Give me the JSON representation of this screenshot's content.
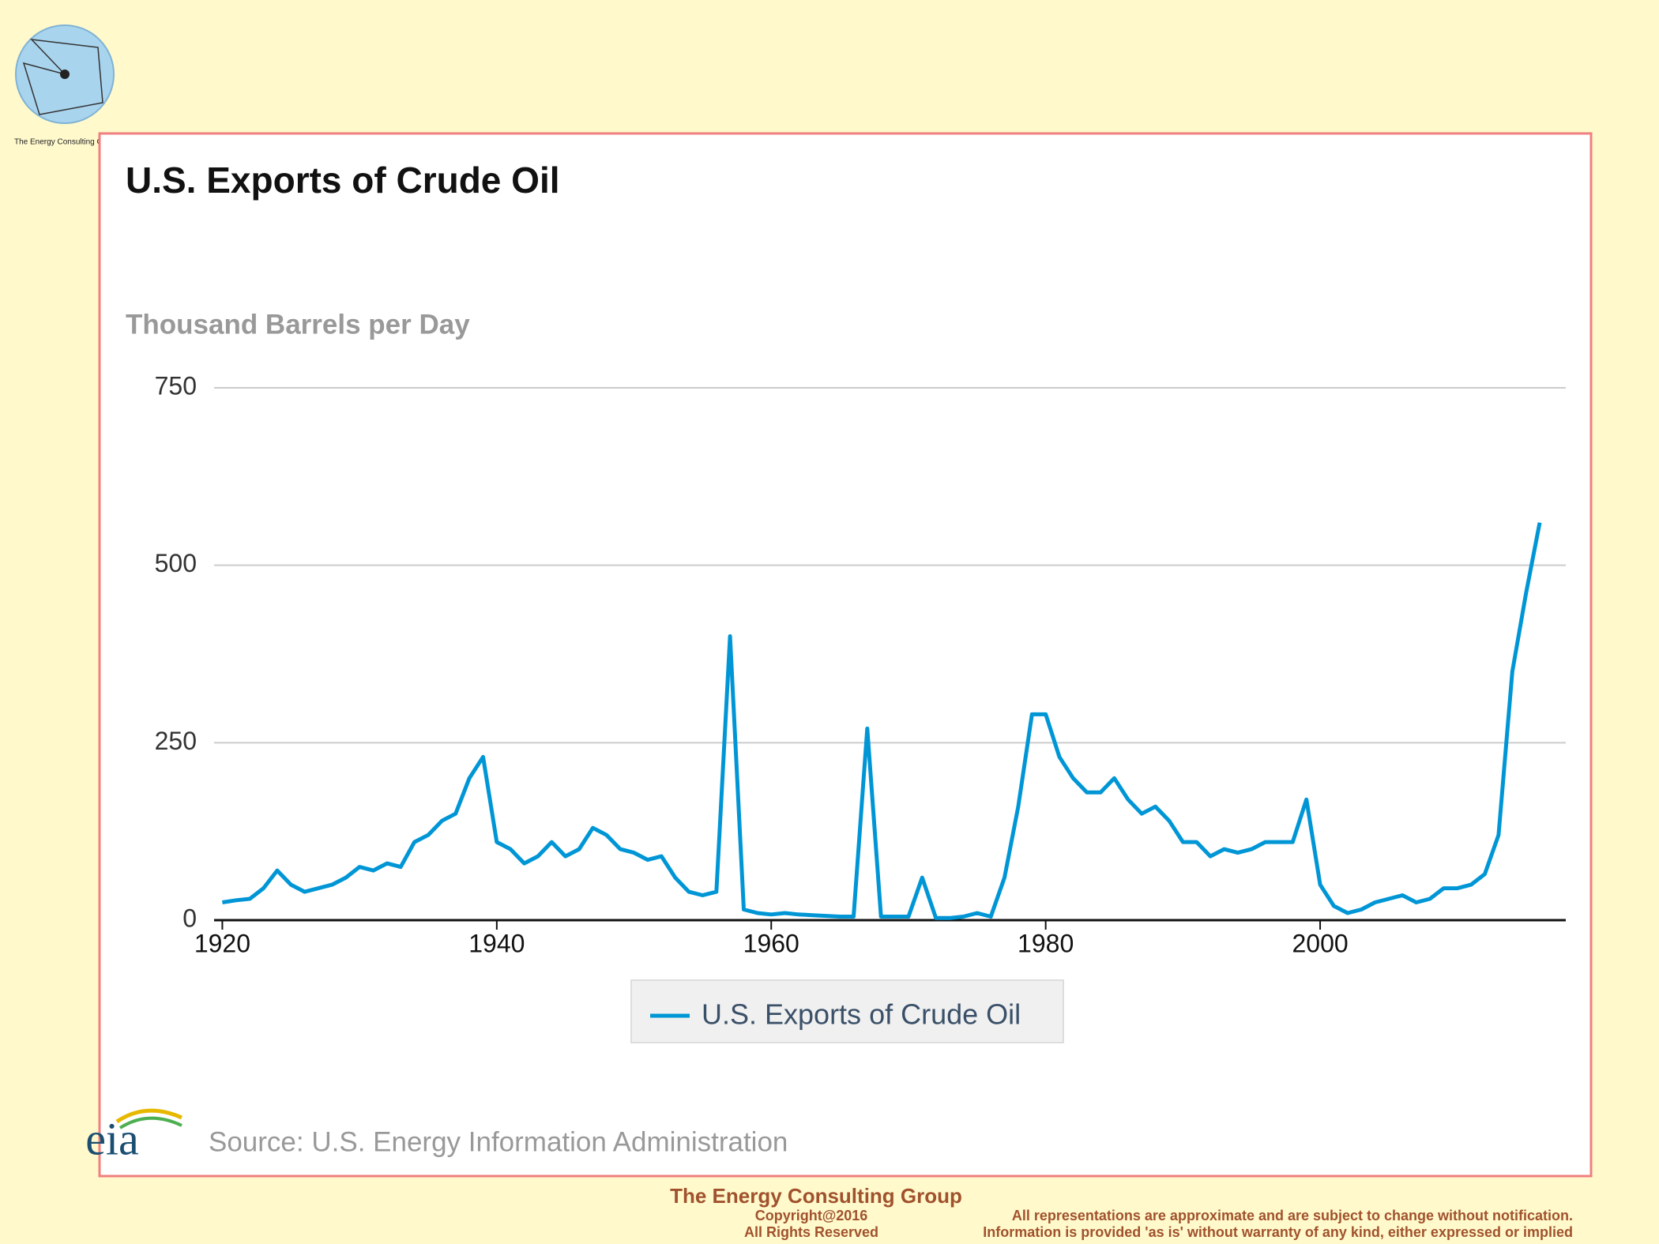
{
  "header": {
    "logo_caption": "The Energy Consulting Group"
  },
  "chart_data": {
    "type": "line",
    "title": "U.S. Exports of Crude Oil",
    "y_label": "Thousand Barrels per Day",
    "x": [
      1920,
      1921,
      1922,
      1923,
      1924,
      1925,
      1926,
      1927,
      1928,
      1929,
      1930,
      1931,
      1932,
      1933,
      1934,
      1935,
      1936,
      1937,
      1938,
      1939,
      1940,
      1941,
      1942,
      1943,
      1944,
      1945,
      1946,
      1947,
      1948,
      1949,
      1950,
      1951,
      1952,
      1953,
      1954,
      1955,
      1956,
      1957,
      1958,
      1959,
      1960,
      1961,
      1962,
      1963,
      1964,
      1965,
      1966,
      1967,
      1968,
      1969,
      1970,
      1971,
      1972,
      1973,
      1974,
      1975,
      1976,
      1977,
      1978,
      1979,
      1980,
      1981,
      1982,
      1983,
      1984,
      1985,
      1986,
      1987,
      1988,
      1989,
      1990,
      1991,
      1992,
      1993,
      1994,
      1995,
      1996,
      1997,
      1998,
      1999,
      2000,
      2001,
      2002,
      2003,
      2004,
      2005,
      2006,
      2007,
      2008,
      2009,
      2010,
      2011,
      2012,
      2013,
      2014,
      2015,
      2016
    ],
    "series": [
      {
        "name": "U.S. Exports of Crude Oil",
        "color": "#0096d6",
        "values": [
          25,
          28,
          30,
          45,
          70,
          50,
          40,
          45,
          50,
          60,
          75,
          70,
          80,
          75,
          110,
          120,
          140,
          150,
          200,
          230,
          110,
          100,
          80,
          90,
          110,
          90,
          100,
          130,
          120,
          100,
          95,
          85,
          90,
          60,
          40,
          35,
          40,
          400,
          15,
          10,
          8,
          10,
          8,
          7,
          6,
          5,
          5,
          270,
          5,
          5,
          5,
          60,
          3,
          3,
          5,
          10,
          5,
          60,
          160,
          290,
          290,
          230,
          200,
          180,
          180,
          200,
          170,
          150,
          160,
          140,
          110,
          110,
          90,
          100,
          95,
          100,
          110,
          110,
          110,
          170,
          50,
          20,
          10,
          15,
          25,
          30,
          35,
          25,
          30,
          45,
          45,
          50,
          65,
          120,
          350,
          460,
          560
        ]
      }
    ],
    "xlim": [
      1919.4,
      2017.9
    ],
    "xticks": [
      1920,
      1940,
      1960,
      1980,
      2000
    ],
    "ylim": [
      0,
      750
    ],
    "yticks": [
      0,
      250,
      500,
      750
    ],
    "grid": true,
    "logo_text": "eia",
    "source": "Source: U.S. Energy Information Administration"
  },
  "footer": {
    "company": "The Energy Consulting Group",
    "copyright": "Copyright@2016",
    "rights": "All Rights Reserved",
    "disclaimer1": "All representations are approximate and are subject to change without notification.",
    "disclaimer2": "Information is provided 'as is' without warranty of any kind, either expressed or implied"
  }
}
